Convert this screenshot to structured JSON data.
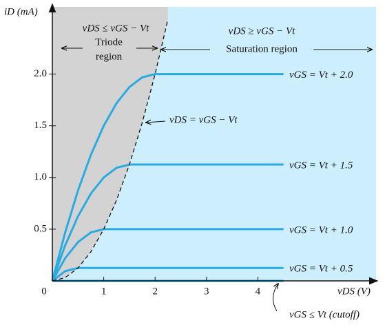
{
  "chart_data": {
    "type": "line",
    "x_label": "vDS (V)",
    "y_label": "iD (mA)",
    "xlim": [
      0,
      6.3
    ],
    "ylim": [
      0,
      2.65
    ],
    "xticks": [
      0,
      1,
      2,
      3,
      4
    ],
    "yticks": [
      {
        "value": 0.5,
        "label": "0.5"
      },
      {
        "value": 1.0,
        "label": "1.0"
      },
      {
        "value": 1.5,
        "label": "1.5"
      },
      {
        "value": 2.0,
        "label": "2.0"
      }
    ],
    "triode_color": "#d3d3d3",
    "saturation_color": "#cdeefc",
    "annotations": {
      "triode_condition": "vDS ≤ vGS − Vt",
      "triode_region": [
        "Triode",
        "region"
      ],
      "saturation_condition": "vDS ≥ vGS − Vt",
      "saturation_region": "Saturation region"
    },
    "x": [
      0,
      0.25,
      0.5,
      0.75,
      1,
      1.25,
      1.5,
      1.75,
      2,
      2.25,
      2.5,
      2.75,
      3,
      3.25,
      3.5,
      3.75,
      4,
      4.25,
      4.5
    ],
    "series": [
      {
        "name": "vGS = Vt + 2.0",
        "color": "#29abe2",
        "values": [
          0,
          0.469,
          0.875,
          1.219,
          1.5,
          1.719,
          1.875,
          1.969,
          2,
          2,
          2,
          2,
          2,
          2,
          2,
          2,
          2,
          2,
          2
        ]
      },
      {
        "name": "vGS = Vt + 1.5",
        "color": "#29abe2",
        "values": [
          0,
          0.344,
          0.625,
          0.844,
          1.0,
          1.094,
          1.125,
          1.125,
          1.125,
          1.125,
          1.125,
          1.125,
          1.125,
          1.125,
          1.125,
          1.125,
          1.125,
          1.125,
          1.125
        ]
      },
      {
        "name": "vGS = Vt + 1.0",
        "color": "#29abe2",
        "values": [
          0,
          0.219,
          0.375,
          0.469,
          0.5,
          0.5,
          0.5,
          0.5,
          0.5,
          0.5,
          0.5,
          0.5,
          0.5,
          0.5,
          0.5,
          0.5,
          0.5,
          0.5,
          0.5
        ]
      },
      {
        "name": "vGS = Vt + 0.5",
        "color": "#29abe2",
        "values": [
          0,
          0.094,
          0.125,
          0.125,
          0.125,
          0.125,
          0.125,
          0.125,
          0.125,
          0.125,
          0.125,
          0.125,
          0.125,
          0.125,
          0.125,
          0.125,
          0.125,
          0.125,
          0.125
        ]
      },
      {
        "name": "vGS ≤ Vt (cutoff)",
        "color": "#29abe2",
        "values": [
          0,
          0,
          0,
          0,
          0,
          0,
          0,
          0,
          0,
          0,
          0,
          0,
          0,
          0,
          0,
          0,
          0,
          0,
          0
        ]
      },
      {
        "name": "vDS = vGS − Vt",
        "color": "#111111",
        "dashed": true,
        "values": [
          0,
          0.031,
          0.125,
          0.281,
          0.5,
          0.781,
          1.125,
          1.531,
          2,
          2.531,
          null,
          null,
          null,
          null,
          null,
          null,
          null,
          null,
          null
        ]
      }
    ]
  }
}
